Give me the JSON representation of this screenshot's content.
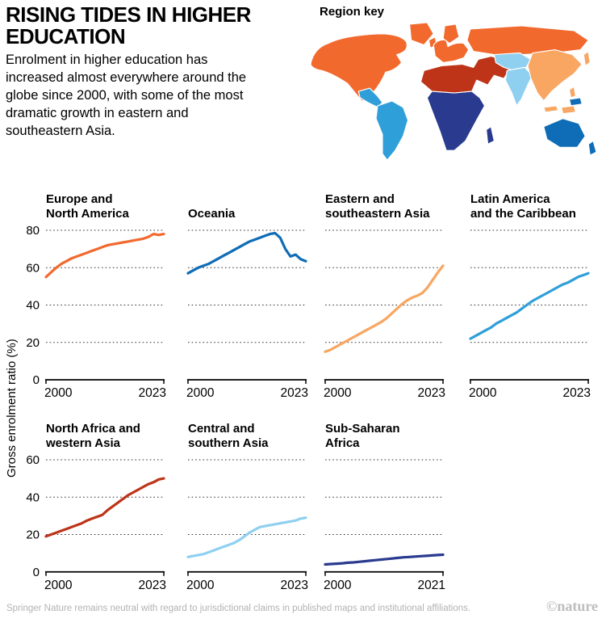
{
  "header": {
    "title": "RISING TIDES IN HIGHER EDUCATION",
    "subtitle": "Enrolment in higher education has increased almost everywhere around the globe since 2000, with some of the most dramatic growth in eastern and southeastern Asia.",
    "region_key_label": "Region key"
  },
  "regions": [
    {
      "name": "Europe and North America",
      "color": "#f2692e"
    },
    {
      "name": "Oceania",
      "color": "#0e6db6"
    },
    {
      "name": "Eastern and southeastern Asia",
      "color": "#f8a661"
    },
    {
      "name": "Latin America and the Caribbean",
      "color": "#2f9fd9"
    },
    {
      "name": "North Africa and western Asia",
      "color": "#bd3418"
    },
    {
      "name": "Central and southern Asia",
      "color": "#8fd0f0"
    },
    {
      "name": "Sub-Saharan Africa",
      "color": "#2a3b8f"
    }
  ],
  "axis": {
    "ylabel": "Gross enrolment ratio (%)"
  },
  "chart_data": [
    {
      "type": "line",
      "title": "Europe and\nNorth America",
      "color": "#f2692e",
      "x": [
        2000,
        2001,
        2002,
        2003,
        2004,
        2005,
        2006,
        2007,
        2008,
        2009,
        2010,
        2011,
        2012,
        2013,
        2014,
        2015,
        2016,
        2017,
        2018,
        2019,
        2020,
        2021,
        2022,
        2023
      ],
      "y": [
        55,
        57.5,
        60,
        62,
        63.5,
        65,
        66,
        67,
        68,
        69,
        70,
        71,
        72,
        72.5,
        73,
        73.5,
        74,
        74.5,
        75,
        75.5,
        76.5,
        78,
        77.5,
        78
      ],
      "xlim": [
        2000,
        2023
      ],
      "ylim": [
        0,
        80
      ],
      "yticks": [
        0,
        20,
        40,
        60,
        80
      ],
      "xticks": [
        2000,
        2023
      ],
      "xtick_labels": [
        "2000",
        "2023"
      ],
      "show_ylabels": true
    },
    {
      "type": "line",
      "title": "Oceania",
      "color": "#0e6db6",
      "x": [
        2000,
        2001,
        2002,
        2003,
        2004,
        2005,
        2006,
        2007,
        2008,
        2009,
        2010,
        2011,
        2012,
        2013,
        2014,
        2015,
        2016,
        2017,
        2018,
        2019,
        2020,
        2021,
        2022,
        2023
      ],
      "y": [
        57,
        58.5,
        60,
        61,
        62,
        63.5,
        65,
        66.5,
        68,
        69.5,
        71,
        72.5,
        74,
        75,
        76,
        77,
        78,
        78.5,
        76,
        70,
        66,
        67,
        64.5,
        63.5
      ],
      "xlim": [
        2000,
        2023
      ],
      "ylim": [
        0,
        80
      ],
      "yticks": [
        0,
        20,
        40,
        60,
        80
      ],
      "xticks": [
        2000,
        2023
      ],
      "xtick_labels": [
        "2000",
        "2023"
      ],
      "show_ylabels": false
    },
    {
      "type": "line",
      "title": "Eastern and\nsoutheastern Asia",
      "color": "#f8a661",
      "x": [
        2000,
        2001,
        2002,
        2003,
        2004,
        2005,
        2006,
        2007,
        2008,
        2009,
        2010,
        2011,
        2012,
        2013,
        2014,
        2015,
        2016,
        2017,
        2018,
        2019,
        2020,
        2021,
        2022,
        2023
      ],
      "y": [
        15,
        16,
        17.5,
        19,
        20.5,
        22,
        23.5,
        25,
        26.5,
        28,
        29.5,
        31,
        33,
        35.5,
        38,
        40.5,
        42.5,
        44,
        45,
        46.5,
        49.5,
        53.5,
        57.5,
        61
      ],
      "xlim": [
        2000,
        2023
      ],
      "ylim": [
        0,
        80
      ],
      "yticks": [
        0,
        20,
        40,
        60,
        80
      ],
      "xticks": [
        2000,
        2023
      ],
      "xtick_labels": [
        "2000",
        "2023"
      ],
      "show_ylabels": false
    },
    {
      "type": "line",
      "title": "Latin America\nand the Caribbean",
      "color": "#2f9fd9",
      "x": [
        2000,
        2001,
        2002,
        2003,
        2004,
        2005,
        2006,
        2007,
        2008,
        2009,
        2010,
        2011,
        2012,
        2013,
        2014,
        2015,
        2016,
        2017,
        2018,
        2019,
        2020,
        2021,
        2022,
        2023
      ],
      "y": [
        22,
        23.5,
        25,
        26.5,
        28,
        30,
        31.5,
        33,
        34.5,
        36,
        38,
        40,
        42,
        43.5,
        45,
        46.5,
        48,
        49.5,
        51,
        52,
        53.5,
        55,
        56,
        57
      ],
      "xlim": [
        2000,
        2023
      ],
      "ylim": [
        0,
        80
      ],
      "yticks": [
        0,
        20,
        40,
        60,
        80
      ],
      "xticks": [
        2000,
        2023
      ],
      "xtick_labels": [
        "2000",
        "2023"
      ],
      "show_ylabels": false
    },
    {
      "type": "line",
      "title": "North Africa and\nwestern Asia",
      "color": "#bd3418",
      "x": [
        2000,
        2001,
        2002,
        2003,
        2004,
        2005,
        2006,
        2007,
        2008,
        2009,
        2010,
        2011,
        2012,
        2013,
        2014,
        2015,
        2016,
        2017,
        2018,
        2019,
        2020,
        2021,
        2022,
        2023
      ],
      "y": [
        19,
        20,
        21,
        22,
        23,
        24,
        25,
        26,
        27.5,
        28.5,
        29.5,
        30.5,
        33,
        35,
        37,
        39,
        41,
        42.5,
        44,
        45.5,
        47,
        48,
        49.5,
        50
      ],
      "xlim": [
        2000,
        2023
      ],
      "ylim": [
        0,
        60
      ],
      "yticks": [
        0,
        20,
        40,
        60
      ],
      "xticks": [
        2000,
        2023
      ],
      "xtick_labels": [
        "2000",
        "2023"
      ],
      "show_ylabels": true
    },
    {
      "type": "line",
      "title": "Central and\nsouthern Asia",
      "color": "#8fd0f0",
      "x": [
        2000,
        2001,
        2002,
        2003,
        2004,
        2005,
        2006,
        2007,
        2008,
        2009,
        2010,
        2011,
        2012,
        2013,
        2014,
        2015,
        2016,
        2017,
        2018,
        2019,
        2020,
        2021,
        2022,
        2023
      ],
      "y": [
        8,
        8.5,
        9,
        9.5,
        10.5,
        11.5,
        12.5,
        13.5,
        14.5,
        15.5,
        17,
        19,
        21,
        22.5,
        24,
        24.5,
        25,
        25.5,
        26,
        26.5,
        27,
        27.5,
        28.5,
        29
      ],
      "xlim": [
        2000,
        2023
      ],
      "ylim": [
        0,
        60
      ],
      "yticks": [
        0,
        20,
        40,
        60
      ],
      "xticks": [
        2000,
        2023
      ],
      "xtick_labels": [
        "2000",
        "2023"
      ],
      "show_ylabels": false
    },
    {
      "type": "line",
      "title": "Sub-Saharan\nAfrica",
      "color": "#2a3b8f",
      "x": [
        2000,
        2001,
        2002,
        2003,
        2004,
        2005,
        2006,
        2007,
        2008,
        2009,
        2010,
        2011,
        2012,
        2013,
        2014,
        2015,
        2016,
        2017,
        2018,
        2019,
        2020,
        2021
      ],
      "y": [
        4,
        4.2,
        4.4,
        4.6,
        4.9,
        5.1,
        5.4,
        5.7,
        6,
        6.3,
        6.6,
        6.9,
        7.2,
        7.5,
        7.8,
        8,
        8.2,
        8.4,
        8.6,
        8.8,
        9,
        9.2
      ],
      "xlim": [
        2000,
        2021
      ],
      "ylim": [
        0,
        60
      ],
      "yticks": [
        0,
        20,
        40,
        60
      ],
      "xticks": [
        2000,
        2021
      ],
      "xtick_labels": [
        "2000",
        "2021"
      ],
      "show_ylabels": false
    }
  ],
  "footer": {
    "note": "Springer Nature remains neutral with regard to jurisdictional claims in published maps and institutional affiliations.",
    "credit": "©nature"
  }
}
